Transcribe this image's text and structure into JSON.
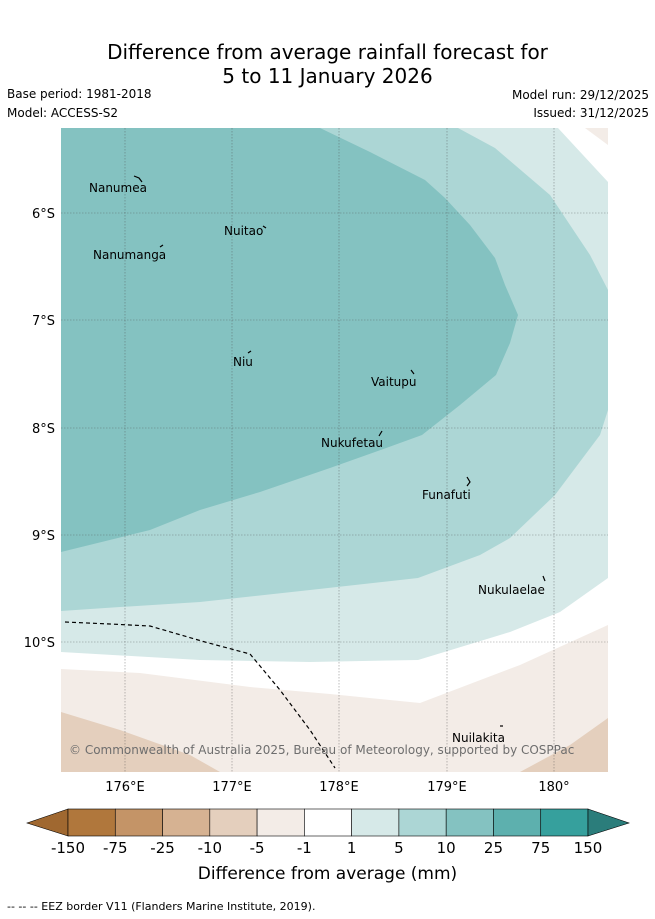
{
  "title_line1": "Difference from average rainfall forecast for",
  "title_line2": "5 to 11 January 2026",
  "base_period": "Base period: 1981-2018",
  "model": "Model: ACCESS-S2",
  "model_run": "Model run: 29/12/2025",
  "issued": "Issued: 31/12/2025",
  "map": {
    "lon_range": [
      175.4,
      180.5
    ],
    "lat_range": [
      -11.2,
      -5.2
    ],
    "lon_ticks": [
      "176°E",
      "177°E",
      "178°E",
      "179°E",
      "180°"
    ],
    "lat_ticks": [
      "6°S",
      "7°S",
      "8°S",
      "9°S",
      "10°S"
    ],
    "places": [
      "Nanumea",
      "Nuitao",
      "Nanumanga",
      "Niu",
      "Vaitupu",
      "Nukufetau",
      "Funafuti",
      "Nukulaelae",
      "Nuilakita"
    ],
    "copyright": "© Commonwealth of Australia 2025, Bureau of Meteorology, supported by COSPPac"
  },
  "legend": {
    "title": "Difference from average (mm)",
    "tick_labels": [
      "-150",
      "-75",
      "-25",
      "-10",
      "-5",
      "-1",
      "1",
      "5",
      "10",
      "25",
      "75",
      "150"
    ],
    "colors": [
      "#b0773c",
      "#c49467",
      "#d6b292",
      "#e4cfbd",
      "#f3ece7",
      "#ffffff",
      "#d6e9e8",
      "#acd6d5",
      "#84c2c1",
      "#5db0ae",
      "#36a09d"
    ],
    "extend_low_color": "#a06830",
    "extend_high_color": "#2b7d7b"
  },
  "footnote": "-- -- -- EEZ border V11 (Flanders Marine Institute, 2019)."
}
